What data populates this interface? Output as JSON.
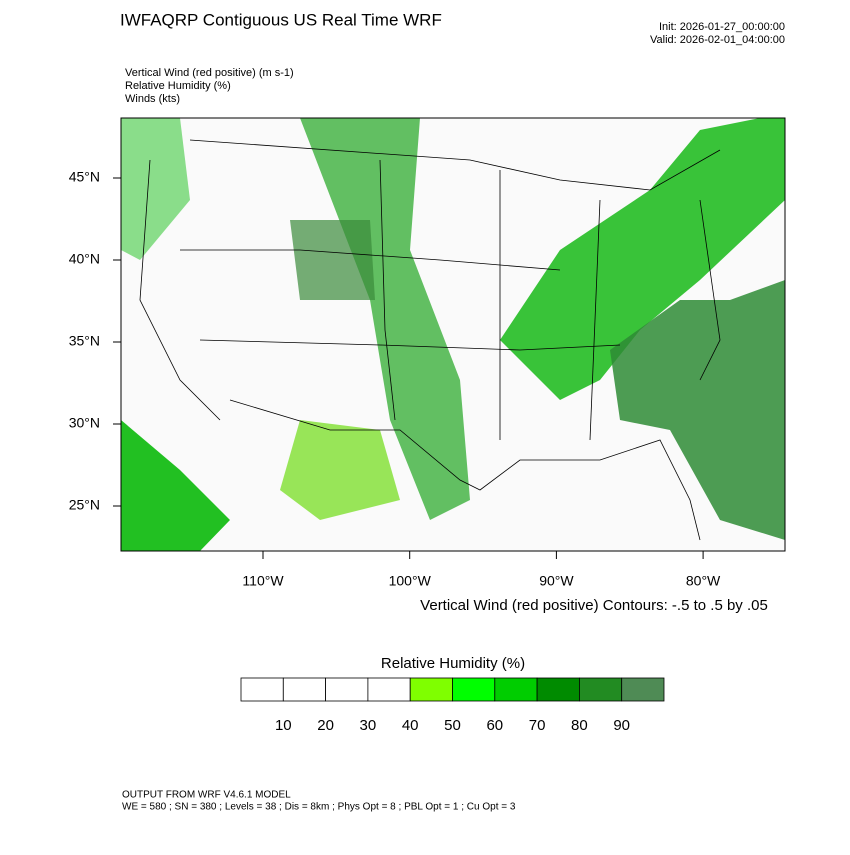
{
  "header": {
    "title": "IWFAQRP Contiguous US Real Time WRF",
    "init": "Init: 2026-01-27_00:00:00",
    "valid": "Valid: 2026-02-01_04:00:00"
  },
  "fields": [
    "Vertical Wind (red positive)   (m s-1)",
    "Relative Humidity   (%)",
    "Winds   (kts)"
  ],
  "map": {
    "lat_ticks": [
      {
        "value": 45,
        "label": "45°N"
      },
      {
        "value": 40,
        "label": "40°N"
      },
      {
        "value": 35,
        "label": "35°N"
      },
      {
        "value": 30,
        "label": "30°N"
      },
      {
        "value": 25,
        "label": "25°N"
      }
    ],
    "lon_ticks": [
      {
        "value": -110,
        "label": "110°W"
      },
      {
        "value": -100,
        "label": "100°W"
      },
      {
        "value": -90,
        "label": "90°W"
      },
      {
        "value": -80,
        "label": "80°W"
      }
    ],
    "contour_note": "Vertical Wind (red positive) Contours: -.5 to .5 by .05"
  },
  "colorbar": {
    "title": "Relative Humidity  (%)",
    "labels": [
      10,
      20,
      30,
      40,
      50,
      60,
      70,
      80,
      90
    ],
    "colors": [
      "#ffffff",
      "#ffffff",
      "#ffffff",
      "#ffffff",
      "#7fff00",
      "#00ff00",
      "#00cd00",
      "#008b00",
      "#228b22",
      "#4f8b55"
    ]
  },
  "footer": [
    "OUTPUT FROM WRF V4.6.1 MODEL",
    "WE = 580 ; SN = 380 ; Levels = 38 ; Dis = 8km ; Phys Opt = 8 ; PBL Opt = 1 ; Cu Opt = 3"
  ]
}
